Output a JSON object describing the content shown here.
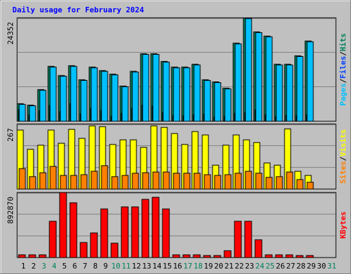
{
  "chart_data": {
    "type": "bar",
    "title": "Daily usage for February 2024",
    "title_color": "#0000ff",
    "categories": [
      "1",
      "2",
      "3",
      "4",
      "5",
      "6",
      "7",
      "8",
      "9",
      "10",
      "11",
      "12",
      "13",
      "14",
      "15",
      "16",
      "17",
      "18",
      "19",
      "20",
      "21",
      "22",
      "23",
      "24",
      "25",
      "26",
      "27",
      "28",
      "29",
      "30",
      "31"
    ],
    "category_colors": [
      "#000000",
      "#000000",
      "#00805c",
      "#00805c",
      "#000000",
      "#000000",
      "#000000",
      "#000000",
      "#000000",
      "#00805c",
      "#00805c",
      "#000000",
      "#000000",
      "#000000",
      "#000000",
      "#000000",
      "#00805c",
      "#00805c",
      "#000000",
      "#000000",
      "#000000",
      "#000000",
      "#000000",
      "#00805c",
      "#00805c",
      "#000000",
      "#000000",
      "#000000",
      "#000000",
      "#000000",
      "#00805c"
    ],
    "separator": "/",
    "panels": [
      {
        "ylim": [
          0,
          24352
        ],
        "yticks": [
          24352
        ],
        "series": [
          {
            "name": "Hits",
            "color": "#00805c",
            "values": [
              4141,
              3810,
              7455,
              12922,
              10768,
              13088,
              9774,
              12756,
              11928,
              11099,
              8283,
              11762,
              15903,
              15903,
              14081,
              12756,
              12756,
              13419,
              9774,
              9277,
              7786,
              18388,
              24352,
              21039,
              20045,
              13419,
              13419,
              15406,
              18885,
              null,
              null
            ]
          },
          {
            "name": "Files",
            "color": "#0040ff",
            "values": [
              2800,
              1500,
              2500,
              3700,
              2300,
              4200,
              1800,
              3100,
              2600,
              1200,
              1900,
              3000,
              3800,
              3600,
              2100,
              1400,
              1300,
              1600,
              1700,
              1000,
              1100,
              1900,
              2000,
              2700,
              1600,
              1100,
              1400,
              1300,
              1500,
              null,
              null
            ]
          },
          {
            "name": "Pages",
            "color": "#00c0ff",
            "values": [
              3980,
              3650,
              7290,
              12760,
              10600,
              12920,
              9610,
              12590,
              11760,
              10930,
              8120,
              11600,
              15740,
              15740,
              13920,
              12590,
              12590,
              13250,
              9610,
              9110,
              7620,
              18220,
              24180,
              20870,
              19880,
              13250,
              13250,
              15240,
              18720,
              null,
              null
            ]
          }
        ]
      },
      {
        "ylim": [
          0,
          267
        ],
        "yticks": [
          267
        ],
        "series": [
          {
            "name": "Visits",
            "color": "#ffff00",
            "values": [
              242,
              163,
              180,
              242,
              188,
              245,
              208,
              259,
              256,
              183,
              202,
              202,
              171,
              259,
              253,
              228,
              183,
              236,
              222,
              98,
              180,
              222,
              202,
              191,
              107,
              98,
              247,
              73,
              56,
              null,
              null
            ]
          },
          {
            "name": "Sites",
            "color": "#ff8000",
            "values": [
              84,
              51,
              67,
              93,
              56,
              56,
              59,
              73,
              96,
              51,
              56,
              65,
              67,
              70,
              70,
              65,
              65,
              65,
              59,
              56,
              59,
              65,
              73,
              65,
              48,
              51,
              70,
              39,
              28,
              null,
              null
            ]
          }
        ]
      },
      {
        "ylim": [
          0,
          892870
        ],
        "yticks": [
          892870
        ],
        "series": [
          {
            "name": "KBytes",
            "color": "#ff0000",
            "values": [
              37594,
              37594,
              37594,
              498128,
              892870,
              751891,
              206770,
              338350,
              667301,
              197372,
              695495,
              695495,
              798904,
              827100,
              667301,
              37594,
              37594,
              37594,
              28196,
              28196,
              93986,
              498128,
              498128,
              244364,
              37594,
              37594,
              37594,
              28196,
              28196,
              null,
              null
            ]
          }
        ]
      }
    ]
  }
}
